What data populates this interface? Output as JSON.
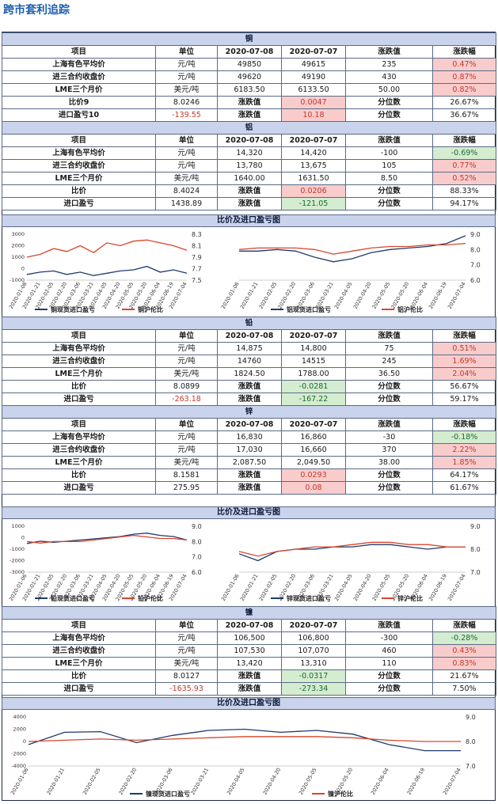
{
  "title": "跨市套利追踪",
  "headers": [
    "项目",
    "单位",
    "2020-07-08",
    "2020-07-07",
    "涨跌值",
    "涨跌幅"
  ],
  "copper": {
    "name": "铜",
    "rows": [
      [
        "上海有色平均价",
        "元/吨",
        "49850",
        "49615",
        "235",
        "0.47%"
      ],
      [
        "进三合约收盘价",
        "元/吨",
        "49620",
        "49190",
        "430",
        "0.87%"
      ],
      [
        "LME三个月价",
        "美元/吨",
        "6183.50",
        "6133.50",
        "50.00",
        "0.82%"
      ]
    ],
    "ratio": [
      "比价9",
      "8.0246",
      "涨跌值",
      "0.0047",
      "分位数",
      "26.67%"
    ],
    "pl": [
      "进口盈亏10",
      "-139.55",
      "涨跌值",
      "10.18",
      "分位数",
      "36.67%"
    ]
  },
  "aluminum": {
    "name": "铝",
    "rows": [
      [
        "上海有色平均价",
        "元/吨",
        "14,320",
        "14,420",
        "-100",
        "-0.69%"
      ],
      [
        "进三合约收盘价",
        "元/吨",
        "13,780",
        "13,675",
        "105",
        "0.77%"
      ],
      [
        "LME三个月价",
        "美元/吨",
        "1640.00",
        "1631.50",
        "8.50",
        "0.52%"
      ]
    ],
    "ratio": [
      "比价",
      "8.4024",
      "涨跌值",
      "0.0206",
      "分位数",
      "88.33%"
    ],
    "pl": [
      "进口盈亏",
      "1438.89",
      "涨跌值",
      "-121.05",
      "分位数",
      "94.17%"
    ]
  },
  "chart1": {
    "title": "比价及进口盈亏图",
    "left_legend": [
      "铜现货进口盈亏",
      "铜沪伦比"
    ],
    "right_legend": [
      "铝现货进口盈亏",
      "铝沪伦比"
    ]
  },
  "lead": {
    "name": "铅",
    "rows": [
      [
        "上海有色平均价",
        "元/吨",
        "14,875",
        "14,800",
        "75",
        "0.51%"
      ],
      [
        "进三合约收盘价",
        "元/吨",
        "14760",
        "14515",
        "245",
        "1.69%"
      ],
      [
        "LME三个月价",
        "美元/吨",
        "1824.50",
        "1788.00",
        "36.50",
        "2.04%"
      ]
    ],
    "ratio": [
      "比价",
      "8.0899",
      "涨跌值",
      "-0.0281",
      "分位数",
      "56.67%"
    ],
    "pl": [
      "进口盈亏",
      "-263.18",
      "涨跌值",
      "-167.22",
      "分位数",
      "59.17%"
    ]
  },
  "zinc": {
    "name": "锌",
    "rows": [
      [
        "上海有色平均价",
        "元/吨",
        "16,830",
        "16,860",
        "-30",
        "-0.18%"
      ],
      [
        "进三合约收盘价",
        "元/吨",
        "17,030",
        "16,660",
        "370",
        "2.22%"
      ],
      [
        "LME三个月价",
        "美元/吨",
        "2,087.50",
        "2,049.50",
        "38.00",
        "1.85%"
      ]
    ],
    "ratio": [
      "比价",
      "8.1581",
      "涨跌值",
      "0.0293",
      "分位数",
      "64.17%"
    ],
    "pl": [
      "进口盈亏",
      "275.95",
      "涨跌值",
      "0.08",
      "分位数",
      "61.67%"
    ]
  },
  "chart2": {
    "title": "比价及进口盈亏图",
    "left_legend": [
      "铅现货进口盈亏",
      "铅沪伦比"
    ],
    "right_legend": [
      "锌现货进口盈亏",
      "锌沪伦比"
    ]
  },
  "nickel": {
    "name": "镍",
    "rows": [
      [
        "上海有色平均价",
        "元/吨",
        "106,500",
        "106,800",
        "-300",
        "-0.28%"
      ],
      [
        "进三合约收盘价",
        "元/吨",
        "107,530",
        "107,070",
        "460",
        "0.43%"
      ],
      [
        "LME三个月价",
        "美元/吨",
        "13,420",
        "13,310",
        "110",
        "0.83%"
      ]
    ],
    "ratio": [
      "比价",
      "8.0127",
      "涨跌值",
      "-0.0317",
      "分位数",
      "21.67%"
    ],
    "pl": [
      "进口盈亏",
      "-1635.93",
      "涨跌值",
      "-273.34",
      "分位数",
      "7.50%"
    ]
  },
  "chart3": {
    "title": "比价及进口盈亏图",
    "legend": [
      "镍现货进口盈亏",
      "镍沪伦比"
    ]
  },
  "colors": {
    "pl_line": "#1f3a6e",
    "ratio_line": "#d9452c",
    "header_fill": "#c9d3ec",
    "up_fill": "#f9cccc",
    "down_fill": "#d4ecd0"
  },
  "chart_data": [
    {
      "type": "line",
      "x": [
        "2020-01-08",
        "2020-01-21",
        "2020-02-05",
        "2020-02-20",
        "2020-03-06",
        "2020-03-21",
        "2020-04-05",
        "2020-04-20",
        "2020-05-05",
        "2020-05-20",
        "2020-06-04",
        "2020-06-19",
        "2020-07-04"
      ],
      "left_ticks": [
        "3000",
        "2000",
        "1000",
        "0",
        "-1000"
      ],
      "right_ticks": [
        "8.3",
        "8.1",
        "7.9",
        "7.7",
        "7.5"
      ],
      "ylim": [
        -1000,
        3000
      ],
      "y2lim": [
        7.5,
        8.3
      ],
      "series": [
        {
          "name": "铜现货进口盈亏",
          "axis": "left",
          "values": [
            -500,
            -300,
            -200,
            -500,
            -300,
            -600,
            -400,
            -200,
            -100,
            200,
            -300,
            -100,
            -400
          ]
        },
        {
          "name": "铜沪伦比",
          "axis": "right",
          "values": [
            7.9,
            7.95,
            8.05,
            8.0,
            8.1,
            7.98,
            8.15,
            8.1,
            8.18,
            8.2,
            8.15,
            8.1,
            8.02
          ]
        }
      ]
    },
    {
      "type": "line",
      "x": [
        "2020-01-06",
        "2020-01-21",
        "2020-02-05",
        "2020-02-20",
        "2020-03-06",
        "2020-03-21",
        "2020-04-05",
        "2020-04-20",
        "2020-05-05",
        "2020-05-20",
        "2020-06-04",
        "2020-06-19",
        "2020-07-04"
      ],
      "right_ticks": [
        "9.0",
        "8.0",
        "7.0",
        "6.0"
      ],
      "y2lim": [
        6.0,
        9.0
      ],
      "series": [
        {
          "name": "铝现货进口盈亏",
          "axis": "right",
          "values": [
            7.9,
            7.9,
            8.0,
            7.9,
            7.5,
            7.2,
            7.4,
            7.8,
            8.0,
            8.1,
            8.2,
            8.4,
            8.9
          ]
        },
        {
          "name": "铝沪伦比",
          "axis": "right",
          "values": [
            8.0,
            8.1,
            8.1,
            8.1,
            8.0,
            7.7,
            7.9,
            8.1,
            8.2,
            8.2,
            8.3,
            8.3,
            8.4
          ]
        }
      ]
    },
    {
      "type": "line",
      "x": [
        "2020-01-06",
        "2020-01-21",
        "2020-02-05",
        "2020-02-20",
        "2020-03-06",
        "2020-03-21",
        "2020-04-05",
        "2020-04-20",
        "2020-05-05",
        "2020-05-20",
        "2020-06-04",
        "2020-06-19",
        "2020-07-04"
      ],
      "left_ticks": [
        "1000",
        "0",
        "-1000",
        "-2000",
        "-3000"
      ],
      "right_ticks": [
        "9.0",
        "8.0",
        "7.0",
        "6.0"
      ],
      "ylim": [
        -3000,
        1000
      ],
      "y2lim": [
        6.0,
        9.0
      ],
      "series": [
        {
          "name": "铅现货进口盈亏",
          "axis": "left",
          "values": [
            -500,
            -300,
            -400,
            -300,
            -200,
            -100,
            0,
            100,
            300,
            400,
            200,
            100,
            -200
          ]
        },
        {
          "name": "铅沪伦比",
          "axis": "right",
          "values": [
            8.0,
            7.9,
            8.0,
            8.0,
            8.0,
            8.1,
            8.2,
            8.3,
            8.4,
            8.3,
            8.2,
            8.2,
            8.1
          ]
        }
      ]
    },
    {
      "type": "line",
      "x": [
        "2020-01-06",
        "2020-01-21",
        "2020-02-05",
        "2020-02-20",
        "2020-03-06",
        "2020-03-21",
        "2020-04-05",
        "2020-04-20",
        "2020-05-05",
        "2020-05-20",
        "2020-06-04",
        "2020-06-19",
        "2020-07-04"
      ],
      "right_ticks": [
        "9.0",
        "8.0",
        "7.0"
      ],
      "y2lim": [
        7.0,
        9.0
      ],
      "series": [
        {
          "name": "锌现货进口盈亏",
          "axis": "right",
          "values": [
            7.8,
            7.5,
            7.9,
            8.0,
            8.0,
            8.1,
            8.1,
            8.2,
            8.2,
            8.1,
            8.0,
            8.1,
            8.1
          ]
        },
        {
          "name": "锌沪伦比",
          "axis": "right",
          "values": [
            7.9,
            7.7,
            7.9,
            8.0,
            8.1,
            8.1,
            8.2,
            8.3,
            8.3,
            8.2,
            8.2,
            8.1,
            8.1
          ]
        }
      ]
    },
    {
      "type": "line",
      "x": [
        "2020-01-06",
        "2020-01-21",
        "2020-02-05",
        "2020-02-20",
        "2020-03-06",
        "2020-03-21",
        "2020-04-05",
        "2020-04-20",
        "2020-05-05",
        "2020-05-20",
        "2020-06-04",
        "2020-06-19",
        "2020-07-04"
      ],
      "left_ticks": [
        "4000",
        "2000",
        "0",
        "-2000",
        "-4000"
      ],
      "right_ticks": [
        "9.0",
        "8.0",
        "7.0"
      ],
      "ylim": [
        -4000,
        4000
      ],
      "y2lim": [
        7.0,
        9.0
      ],
      "series": [
        {
          "name": "镍现货进口盈亏",
          "axis": "left",
          "values": [
            -500,
            1500,
            1600,
            -200,
            1000,
            1800,
            2000,
            1500,
            1800,
            1200,
            -500,
            -1500,
            -1500
          ]
        },
        {
          "name": "镍沪伦比",
          "axis": "right",
          "values": [
            8.0,
            8.05,
            8.1,
            8.05,
            8.1,
            8.15,
            8.2,
            8.2,
            8.2,
            8.15,
            8.05,
            8.0,
            8.0
          ]
        }
      ]
    }
  ]
}
